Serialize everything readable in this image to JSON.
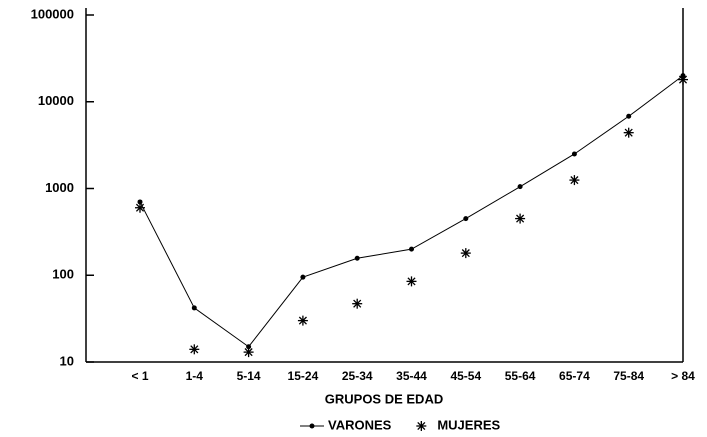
{
  "chart_data": {
    "type": "line",
    "xlabel": "GRUPOS DE EDAD",
    "categories": [
      "< 1",
      "1-4",
      "5-14",
      "15-24",
      "25-34",
      "35-44",
      "45-54",
      "55-64",
      "65-74",
      "75-84",
      "> 84"
    ],
    "series": [
      {
        "name": "VARONES",
        "color": "#000000",
        "marker": "dot",
        "line": true,
        "values": [
          700,
          42,
          15,
          95,
          157,
          200,
          450,
          1050,
          2500,
          6800,
          20000
        ]
      },
      {
        "name": "MUJERES",
        "color": "#000000",
        "marker": "asterisk",
        "line": false,
        "values": [
          600,
          14,
          13,
          30,
          47,
          85,
          180,
          450,
          1250,
          4400,
          18000
        ]
      }
    ],
    "ylim": [
      10,
      100000
    ],
    "yticks": [
      10,
      100,
      1000,
      10000,
      100000
    ],
    "log_y": true,
    "grid": false,
    "legend": "bottom"
  }
}
